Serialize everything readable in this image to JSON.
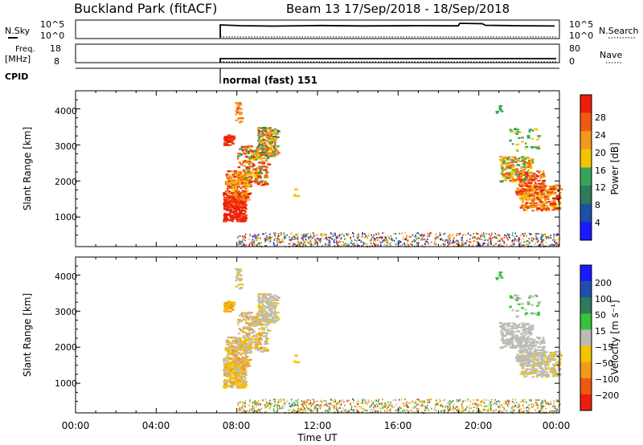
{
  "header": {
    "title": "Buckland Park (fitACF)",
    "beam_date": "Beam 13  17/Sep/2018 - 18/Sep/2018"
  },
  "strip": {
    "nsky_label": "N.Sky",
    "nsky_ticks": [
      "10^5",
      "10^0"
    ],
    "nsearch_label": "N.Search",
    "freq_label_1": "Freq.",
    "freq_label_2": "[MHz]",
    "freq_ticks": [
      "18",
      "8"
    ],
    "nave_label": "Nave",
    "nave_ticks": [
      "80",
      "0"
    ],
    "cpid_label": "CPID",
    "cpid_value": "normal (fast) 151"
  },
  "colors": {
    "power_scale": [
      "#1a1aff",
      "#1f4fa8",
      "#2e7a5c",
      "#37a35a",
      "#f5c400",
      "#f39a1c",
      "#ef5a10",
      "#ee1e0e"
    ],
    "velocity_scale": [
      "#ee1e0e",
      "#ef5a10",
      "#f39a1c",
      "#f5c400",
      "#bcbcb4",
      "#37c23a",
      "#2e7a5c",
      "#1f4fa8",
      "#1a1aff"
    ]
  },
  "chart_data": [
    {
      "type": "heatmap",
      "name": "power",
      "ylabel": "Slant Range [km]",
      "yticks": [
        "4000",
        "3000",
        "2000",
        "1000"
      ],
      "colorbar_label": "Power [dB]",
      "colorbar_ticks": [
        "28",
        "24",
        "20",
        "16",
        "12",
        "8",
        "4"
      ],
      "ylim": [
        180,
        4500
      ],
      "xlim_hours": [
        0,
        24
      ]
    },
    {
      "type": "heatmap",
      "name": "velocity",
      "ylabel": "Slant Range [km]",
      "yticks": [
        "4000",
        "3000",
        "2000",
        "1000"
      ],
      "colorbar_label": "Velocity [m s⁻¹]",
      "colorbar_ticks": [
        "200",
        "100",
        "50",
        "15",
        "−15",
        "−50",
        "−100",
        "−200"
      ],
      "ylim": [
        180,
        4500
      ],
      "xlim_hours": [
        0,
        24
      ]
    }
  ],
  "xaxis": {
    "label": "Time UT",
    "ticks": [
      "00:00",
      "04:00",
      "08:00",
      "12:00",
      "16:00",
      "20:00",
      "00:00"
    ]
  }
}
